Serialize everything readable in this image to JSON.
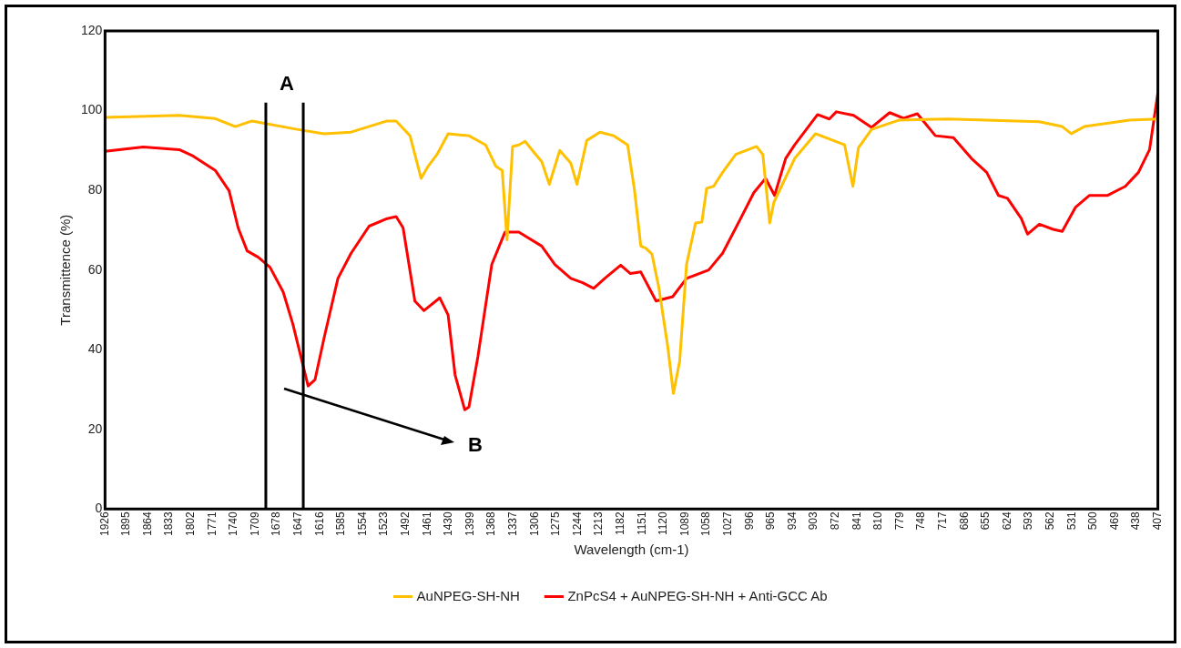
{
  "chart_data": {
    "type": "line",
    "xlabel": "Wavelength (cm-1)",
    "ylabel": "Transmittence (%)",
    "xlim": [
      1926,
      407
    ],
    "xticks": [
      1926,
      1895,
      1864,
      1833,
      1802,
      1771,
      1740,
      1709,
      1678,
      1647,
      1616,
      1585,
      1554,
      1523,
      1492,
      1461,
      1430,
      1399,
      1368,
      1337,
      1306,
      1275,
      1244,
      1213,
      1182,
      1151,
      1120,
      1089,
      1058,
      1027,
      996,
      965,
      934,
      903,
      872,
      841,
      810,
      779,
      748,
      717,
      686,
      655,
      624,
      593,
      562,
      531,
      500,
      469,
      438,
      407
    ],
    "ylim": [
      0,
      120
    ],
    "yticks": [
      0,
      20,
      40,
      60,
      80,
      100,
      120
    ],
    "grid": false,
    "legend": "bottom",
    "marker": "none",
    "line_style": "solid",
    "series": [
      {
        "name": "AuNPEG-SH-NH",
        "color": "#ffc000",
        "x": [
          1926,
          1819,
          1767,
          1738,
          1714,
          1649,
          1610,
          1571,
          1519,
          1506,
          1486,
          1470,
          1460,
          1447,
          1431,
          1401,
          1377,
          1362,
          1353,
          1346,
          1338,
          1329,
          1320,
          1307,
          1296,
          1285,
          1270,
          1254,
          1245,
          1231,
          1212,
          1192,
          1172,
          1162,
          1153,
          1146,
          1137,
          1127,
          1114,
          1106,
          1097,
          1087,
          1074,
          1065,
          1058,
          1048,
          1035,
          1016,
          986,
          977,
          967,
          961,
          931,
          901,
          859,
          847,
          839,
          820,
          781,
          709,
          578,
          545,
          532,
          513,
          448,
          407
        ],
        "values": [
          98.3,
          98.8,
          98,
          96,
          97.4,
          95.3,
          94.2,
          94.6,
          97.4,
          97.4,
          93.7,
          83,
          86,
          89,
          94.2,
          93.7,
          91.4,
          86,
          85,
          67.6,
          91,
          91.4,
          92.3,
          89.5,
          87.2,
          81.5,
          90,
          86.8,
          81.5,
          92.5,
          94.6,
          93.7,
          91.4,
          79.9,
          66,
          65.5,
          64,
          55.6,
          40.6,
          29,
          37,
          61.4,
          71.8,
          72,
          80.5,
          81,
          84.5,
          89,
          91,
          89,
          71.8,
          77,
          88,
          94.2,
          91.4,
          81,
          90.7,
          95.3,
          97.6,
          97.9,
          97.2,
          96,
          94.2,
          96,
          97.6,
          97.9
        ]
      },
      {
        "name": "ZnPcS4 + AuNPEG-SH-NH + Anti-GCC Ab",
        "color": "#ff0000",
        "x": [
          1926,
          1871,
          1819,
          1799,
          1767,
          1747,
          1734,
          1721,
          1705,
          1688,
          1669,
          1655,
          1642,
          1633,
          1623,
          1610,
          1590,
          1571,
          1545,
          1519,
          1506,
          1496,
          1479,
          1466,
          1443,
          1431,
          1421,
          1407,
          1401,
          1388,
          1368,
          1349,
          1329,
          1296,
          1277,
          1254,
          1237,
          1221,
          1205,
          1182,
          1168,
          1153,
          1131,
          1107,
          1087,
          1055,
          1035,
          1009,
          990,
          973,
          960,
          944,
          931,
          898,
          881,
          871,
          846,
          820,
          794,
          774,
          754,
          728,
          702,
          676,
          654,
          637,
          624,
          604,
          595,
          578,
          558,
          545,
          526,
          506,
          480,
          454,
          435,
          419,
          407
        ],
        "values": [
          89.8,
          90.9,
          90.2,
          88.6,
          85,
          79.9,
          70.6,
          64.8,
          63.2,
          60.7,
          54.5,
          46.4,
          37.2,
          30.9,
          32.5,
          42.9,
          57.9,
          64.2,
          71,
          72.9,
          73.4,
          70.6,
          52.2,
          49.8,
          53,
          48.7,
          33.7,
          24.9,
          25.6,
          38.3,
          61.4,
          69.5,
          69.5,
          66,
          61.4,
          57.9,
          56.8,
          55.4,
          57.9,
          61.2,
          59.1,
          59.5,
          52.2,
          53.3,
          57.9,
          60,
          64.2,
          72.9,
          79.4,
          83,
          78.7,
          88,
          91.4,
          99,
          97.9,
          99.7,
          98.8,
          95.8,
          99.5,
          98.1,
          99.2,
          93.7,
          93.2,
          88,
          84.5,
          78.7,
          78,
          72.9,
          69,
          71.5,
          70.2,
          69.7,
          75.7,
          78.7,
          78.7,
          81,
          84.5,
          90.2,
          104.5
        ]
      }
    ],
    "ref_lines": [
      {
        "axis": "x",
        "value": 1694,
        "color": "#000000"
      },
      {
        "axis": "x",
        "value": 1640,
        "color": "#000000"
      }
    ],
    "annotations": [
      "A",
      "B"
    ]
  }
}
